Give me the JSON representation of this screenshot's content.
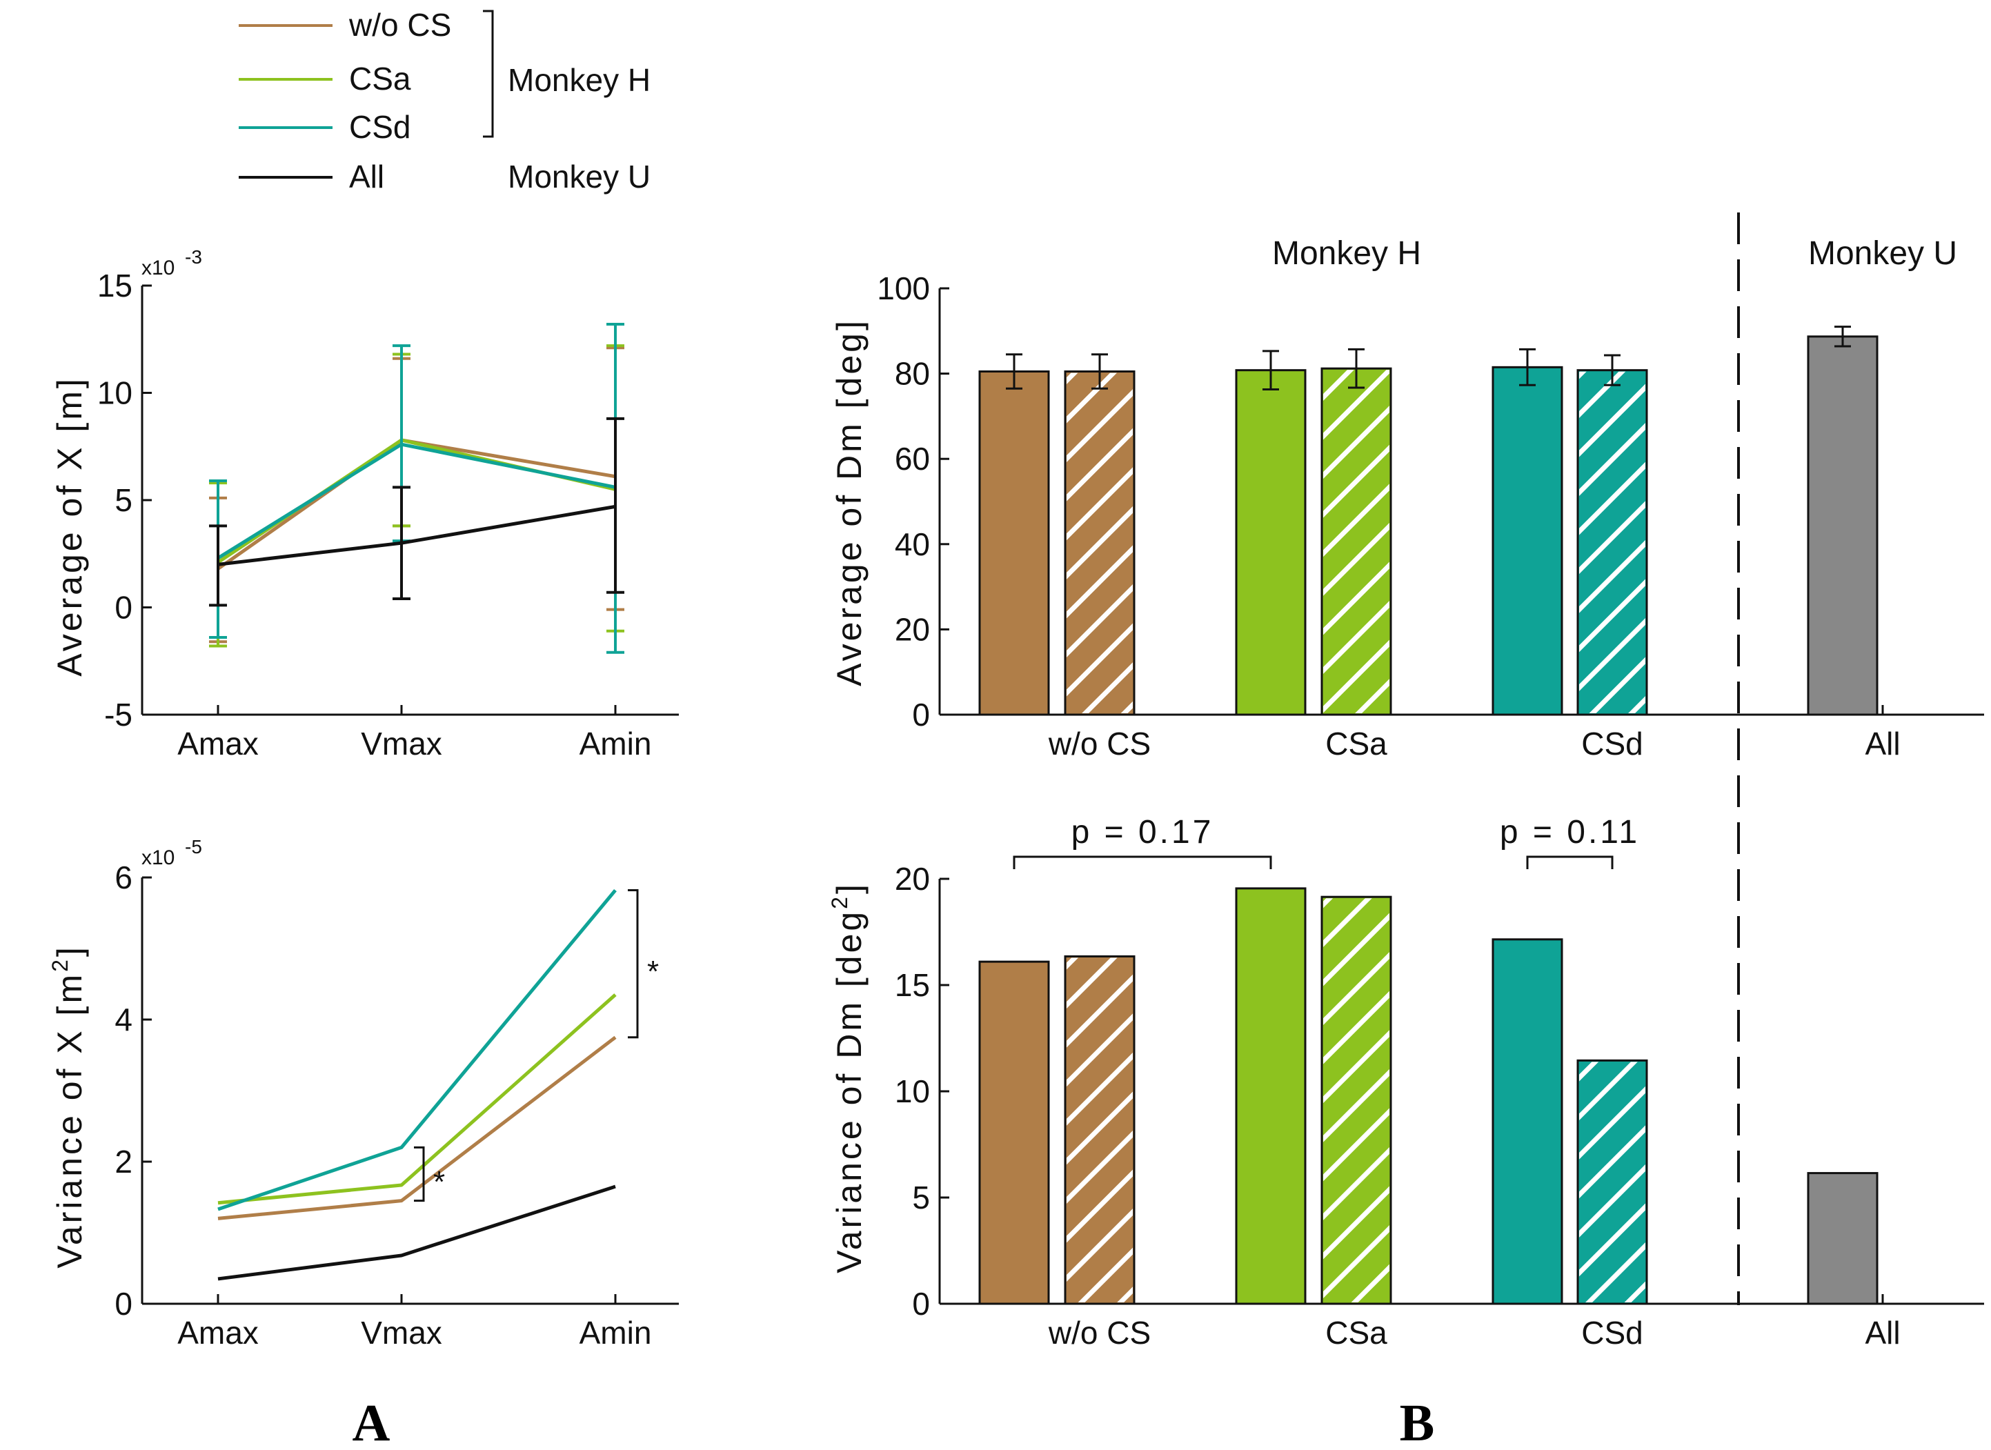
{
  "colors": {
    "wocs": "#B07E48",
    "csa": "#8DC21F",
    "csd": "#0FA396",
    "all": "#111111",
    "bar_all": "#888888",
    "axis": "#111111"
  },
  "legend": {
    "items": [
      {
        "label": "w/o CS",
        "color_key": "wocs"
      },
      {
        "label": "CSa",
        "color_key": "csa"
      },
      {
        "label": "CSd",
        "color_key": "csd"
      },
      {
        "label": "All",
        "color_key": "all"
      }
    ],
    "group_monkey_h": "Monkey H",
    "group_monkey_u": "Monkey U"
  },
  "panel_labels": {
    "a": "A",
    "b": "B"
  },
  "chart_data": [
    {
      "id": "avg_x",
      "type": "line",
      "title": "",
      "xlabel": "",
      "ylabel": "Average of X [m]",
      "scale_label": "x10",
      "scale_exp": "-3",
      "categories": [
        "Amax",
        "Vmax",
        "Amin"
      ],
      "ylim": [
        -5,
        15
      ],
      "yticks": [
        -5,
        0,
        5,
        10,
        15
      ],
      "series": [
        {
          "name": "w/o CS",
          "color_key": "wocs",
          "values": [
            1.8,
            7.8,
            6.1
          ],
          "err_low": [
            -1.6,
            3.8,
            -0.1
          ],
          "err_high": [
            5.1,
            11.6,
            12.1
          ]
        },
        {
          "name": "CSa",
          "color_key": "csa",
          "values": [
            2.1,
            7.8,
            5.5
          ],
          "err_low": [
            -1.8,
            3.8,
            -1.1
          ],
          "err_high": [
            5.8,
            11.8,
            12.2
          ]
        },
        {
          "name": "CSd",
          "color_key": "csd",
          "values": [
            2.3,
            7.6,
            5.6
          ],
          "err_low": [
            -1.4,
            3.1,
            -2.1
          ],
          "err_high": [
            5.9,
            12.2,
            13.2
          ]
        },
        {
          "name": "All",
          "color_key": "all",
          "values": [
            2.0,
            3.0,
            4.7
          ],
          "err_low": [
            0.1,
            0.4,
            0.7
          ],
          "err_high": [
            3.8,
            5.6,
            8.8
          ]
        }
      ]
    },
    {
      "id": "var_x",
      "type": "line",
      "title": "",
      "xlabel": "",
      "ylabel": "Variance of X [m",
      "ylabel_sup": "2",
      "ylabel_end": "]",
      "scale_label": "x10",
      "scale_exp": "-5",
      "categories": [
        "Amax",
        "Vmax",
        "Amin"
      ],
      "ylim": [
        0,
        6
      ],
      "yticks": [
        0,
        2,
        4,
        6
      ],
      "series": [
        {
          "name": "w/o CS",
          "color_key": "wocs",
          "values": [
            1.2,
            1.45,
            3.75
          ]
        },
        {
          "name": "CSa",
          "color_key": "csa",
          "values": [
            1.42,
            1.67,
            4.35
          ]
        },
        {
          "name": "CSd",
          "color_key": "csd",
          "values": [
            1.33,
            2.2,
            5.82
          ]
        },
        {
          "name": "All",
          "color_key": "all",
          "values": [
            0.35,
            0.68,
            1.65
          ]
        }
      ],
      "annotations": [
        {
          "text": "*",
          "at": "Vmax",
          "range": [
            1.45,
            2.2
          ]
        },
        {
          "text": "*",
          "at": "Amin",
          "range": [
            3.75,
            5.82
          ]
        }
      ]
    },
    {
      "id": "avg_dm",
      "type": "bar",
      "title_monkey_h": "Monkey H",
      "title_monkey_u": "Monkey U",
      "ylabel": "Average of Dm [deg]",
      "groups": [
        "w/o CS",
        "CSa",
        "CSd",
        "All"
      ],
      "ylim": [
        0,
        100
      ],
      "yticks": [
        0,
        20,
        40,
        60,
        80,
        100
      ],
      "bars": [
        {
          "group": "w/o CS",
          "color_key": "wocs",
          "hatched": false,
          "value": 80.5,
          "err": 4.0
        },
        {
          "group": "w/o CS",
          "color_key": "wocs",
          "hatched": true,
          "value": 80.5,
          "err": 4.0
        },
        {
          "group": "CSa",
          "color_key": "csa",
          "hatched": false,
          "value": 80.8,
          "err": 4.5
        },
        {
          "group": "CSa",
          "color_key": "csa",
          "hatched": true,
          "value": 81.2,
          "err": 4.5
        },
        {
          "group": "CSd",
          "color_key": "csd",
          "hatched": false,
          "value": 81.5,
          "err": 4.2
        },
        {
          "group": "CSd",
          "color_key": "csd",
          "hatched": true,
          "value": 80.8,
          "err": 3.5
        },
        {
          "group": "All",
          "color_key": "bar_all",
          "hatched": false,
          "value": 88.7,
          "err": 2.3
        }
      ]
    },
    {
      "id": "var_dm",
      "type": "bar",
      "ylabel": "Variance of Dm [deg",
      "ylabel_sup": "2",
      "ylabel_end": "]",
      "groups": [
        "w/o CS",
        "CSa",
        "CSd",
        "All"
      ],
      "ylim": [
        0,
        20
      ],
      "yticks": [
        0,
        5,
        10,
        15,
        20
      ],
      "bars": [
        {
          "group": "w/o CS",
          "color_key": "wocs",
          "hatched": false,
          "value": 16.1
        },
        {
          "group": "w/o CS",
          "color_key": "wocs",
          "hatched": true,
          "value": 16.35
        },
        {
          "group": "CSa",
          "color_key": "csa",
          "hatched": false,
          "value": 19.55
        },
        {
          "group": "CSa",
          "color_key": "csa",
          "hatched": true,
          "value": 19.15
        },
        {
          "group": "CSd",
          "color_key": "csd",
          "hatched": false,
          "value": 17.15
        },
        {
          "group": "CSd",
          "color_key": "csd",
          "hatched": true,
          "value": 11.45
        },
        {
          "group": "All",
          "color_key": "bar_all",
          "hatched": false,
          "value": 6.15
        }
      ],
      "annotations": [
        {
          "text": "p  =  0.17",
          "from_bar": 0,
          "to_bar": 2
        },
        {
          "text": "p  =  0.11",
          "from_bar": 4,
          "to_bar": 5
        }
      ]
    }
  ]
}
